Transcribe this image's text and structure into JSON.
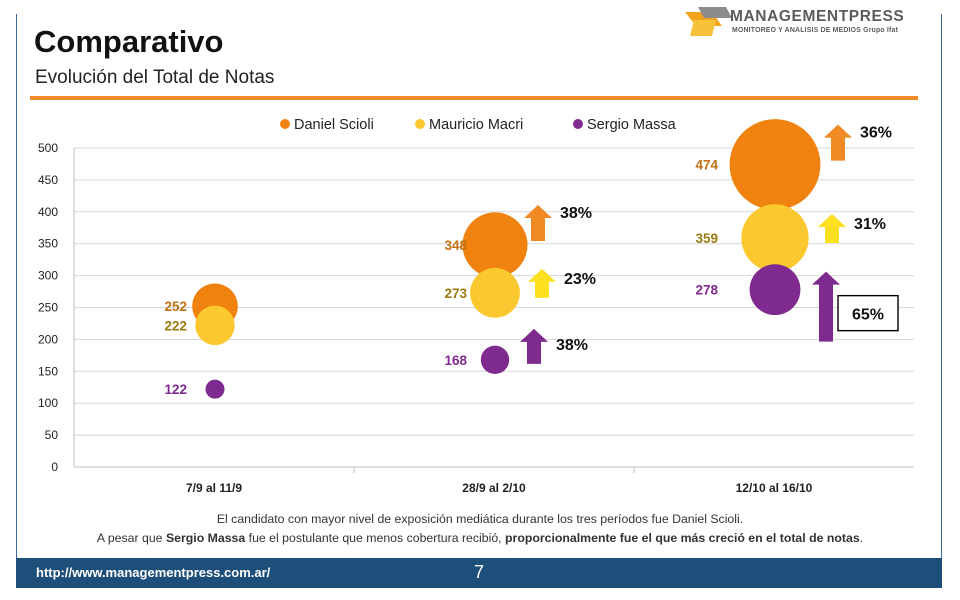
{
  "header": {
    "title": "Comparativo",
    "subtitle": "Evolución del Total de Notas"
  },
  "logo": {
    "name": "MANAGEMENTPRESS",
    "tagline": "MONITOREO Y ANALISIS DE MEDIOS Grupo Ifat"
  },
  "colors": {
    "scioli": "#f0820f",
    "macri": "#fcc830",
    "massa": "#7f2a8e",
    "rule": "#f08a24",
    "footer": "#1e4f7a"
  },
  "chart_data": {
    "type": "scatter",
    "categories": [
      "7/9 al 11/9",
      "28/9 al 2/10",
      "12/10 al 16/10"
    ],
    "ylim": [
      0,
      500
    ],
    "yticks": [
      0,
      50,
      100,
      150,
      200,
      250,
      300,
      350,
      400,
      450,
      500
    ],
    "grid": true,
    "legend_position": "top",
    "series": [
      {
        "name": "Daniel Scioli",
        "values": [
          252,
          348,
          474
        ],
        "color": "#f0820f",
        "label_color": "#c07010"
      },
      {
        "name": "Mauricio Macri",
        "values": [
          222,
          273,
          359
        ],
        "color": "#fcc830",
        "label_color": "#9a7a10"
      },
      {
        "name": "Sergio Massa",
        "values": [
          122,
          168,
          278
        ],
        "color": "#7f2a8e",
        "label_color": "#7f2a8e"
      }
    ],
    "growth": [
      {
        "period": "28/9 al 2/10",
        "series": "Daniel Scioli",
        "label": "38%",
        "arrow_color": "#f08a24"
      },
      {
        "period": "28/9 al 2/10",
        "series": "Mauricio Macri",
        "label": "23%",
        "arrow_color": "#fde020"
      },
      {
        "period": "28/9 al 2/10",
        "series": "Sergio Massa",
        "label": "38%",
        "arrow_color": "#7f2a8e"
      },
      {
        "period": "12/10 al 16/10",
        "series": "Daniel Scioli",
        "label": "36%",
        "arrow_color": "#f08a24"
      },
      {
        "period": "12/10 al 16/10",
        "series": "Mauricio Macri",
        "label": "31%",
        "arrow_color": "#fde020"
      },
      {
        "period": "12/10 al 16/10",
        "series": "Sergio Massa",
        "label": "65%",
        "arrow_color": "#7f2a8e",
        "boxed": true
      }
    ]
  },
  "footnote": {
    "line1": "El candidato con mayor nivel de exposición mediática durante los tres períodos fue Daniel Scioli.",
    "line2_a": "A pesar que ",
    "line2_b": "Sergio Massa",
    "line2_c": " fue el postulante que menos cobertura recibió, ",
    "line2_d": "proporcionalmente fue el que más creció en el total de notas",
    "line2_e": "."
  },
  "footer": {
    "url": "http://www.managementpress.com.ar/",
    "page": "7"
  }
}
